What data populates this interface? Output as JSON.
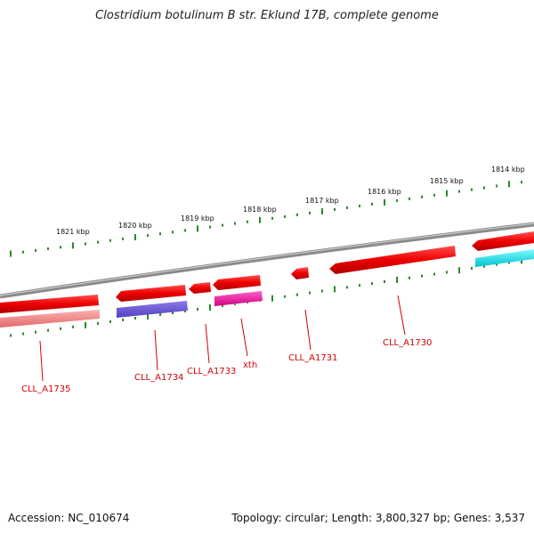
{
  "title": "Clostridium botulinum B str. Eklund 17B, complete genome",
  "footer": {
    "accession": "Accession: NC_010674",
    "summary": "Topology: circular; Length: 3,800,327 bp; Genes: 3,537"
  },
  "colors": {
    "backbone": "#8a8a8a",
    "tick": "#2a8a2a",
    "gene_red": "#ee0000",
    "gene_pink": "#f08080",
    "gene_blue": "#6a5acd",
    "gene_magenta": "#ee1aa0",
    "gene_cyan": "#00e5ee",
    "label": "#d00000"
  },
  "ticks": [
    {
      "label": "1821 kbp"
    },
    {
      "label": "1820 kbp"
    },
    {
      "label": "1819 kbp"
    },
    {
      "label": "1818 kbp"
    },
    {
      "label": "1817 kbp"
    },
    {
      "label": "1816 kbp"
    },
    {
      "label": "1815 kbp"
    },
    {
      "label": "1814 kbp"
    }
  ],
  "gene_labels": [
    {
      "name": "CLL_A1735"
    },
    {
      "name": "CLL_A1734"
    },
    {
      "name": "CLL_A1733"
    },
    {
      "name": "xth"
    },
    {
      "name": "CLL_A1731"
    },
    {
      "name": "CLL_A1730"
    }
  ]
}
